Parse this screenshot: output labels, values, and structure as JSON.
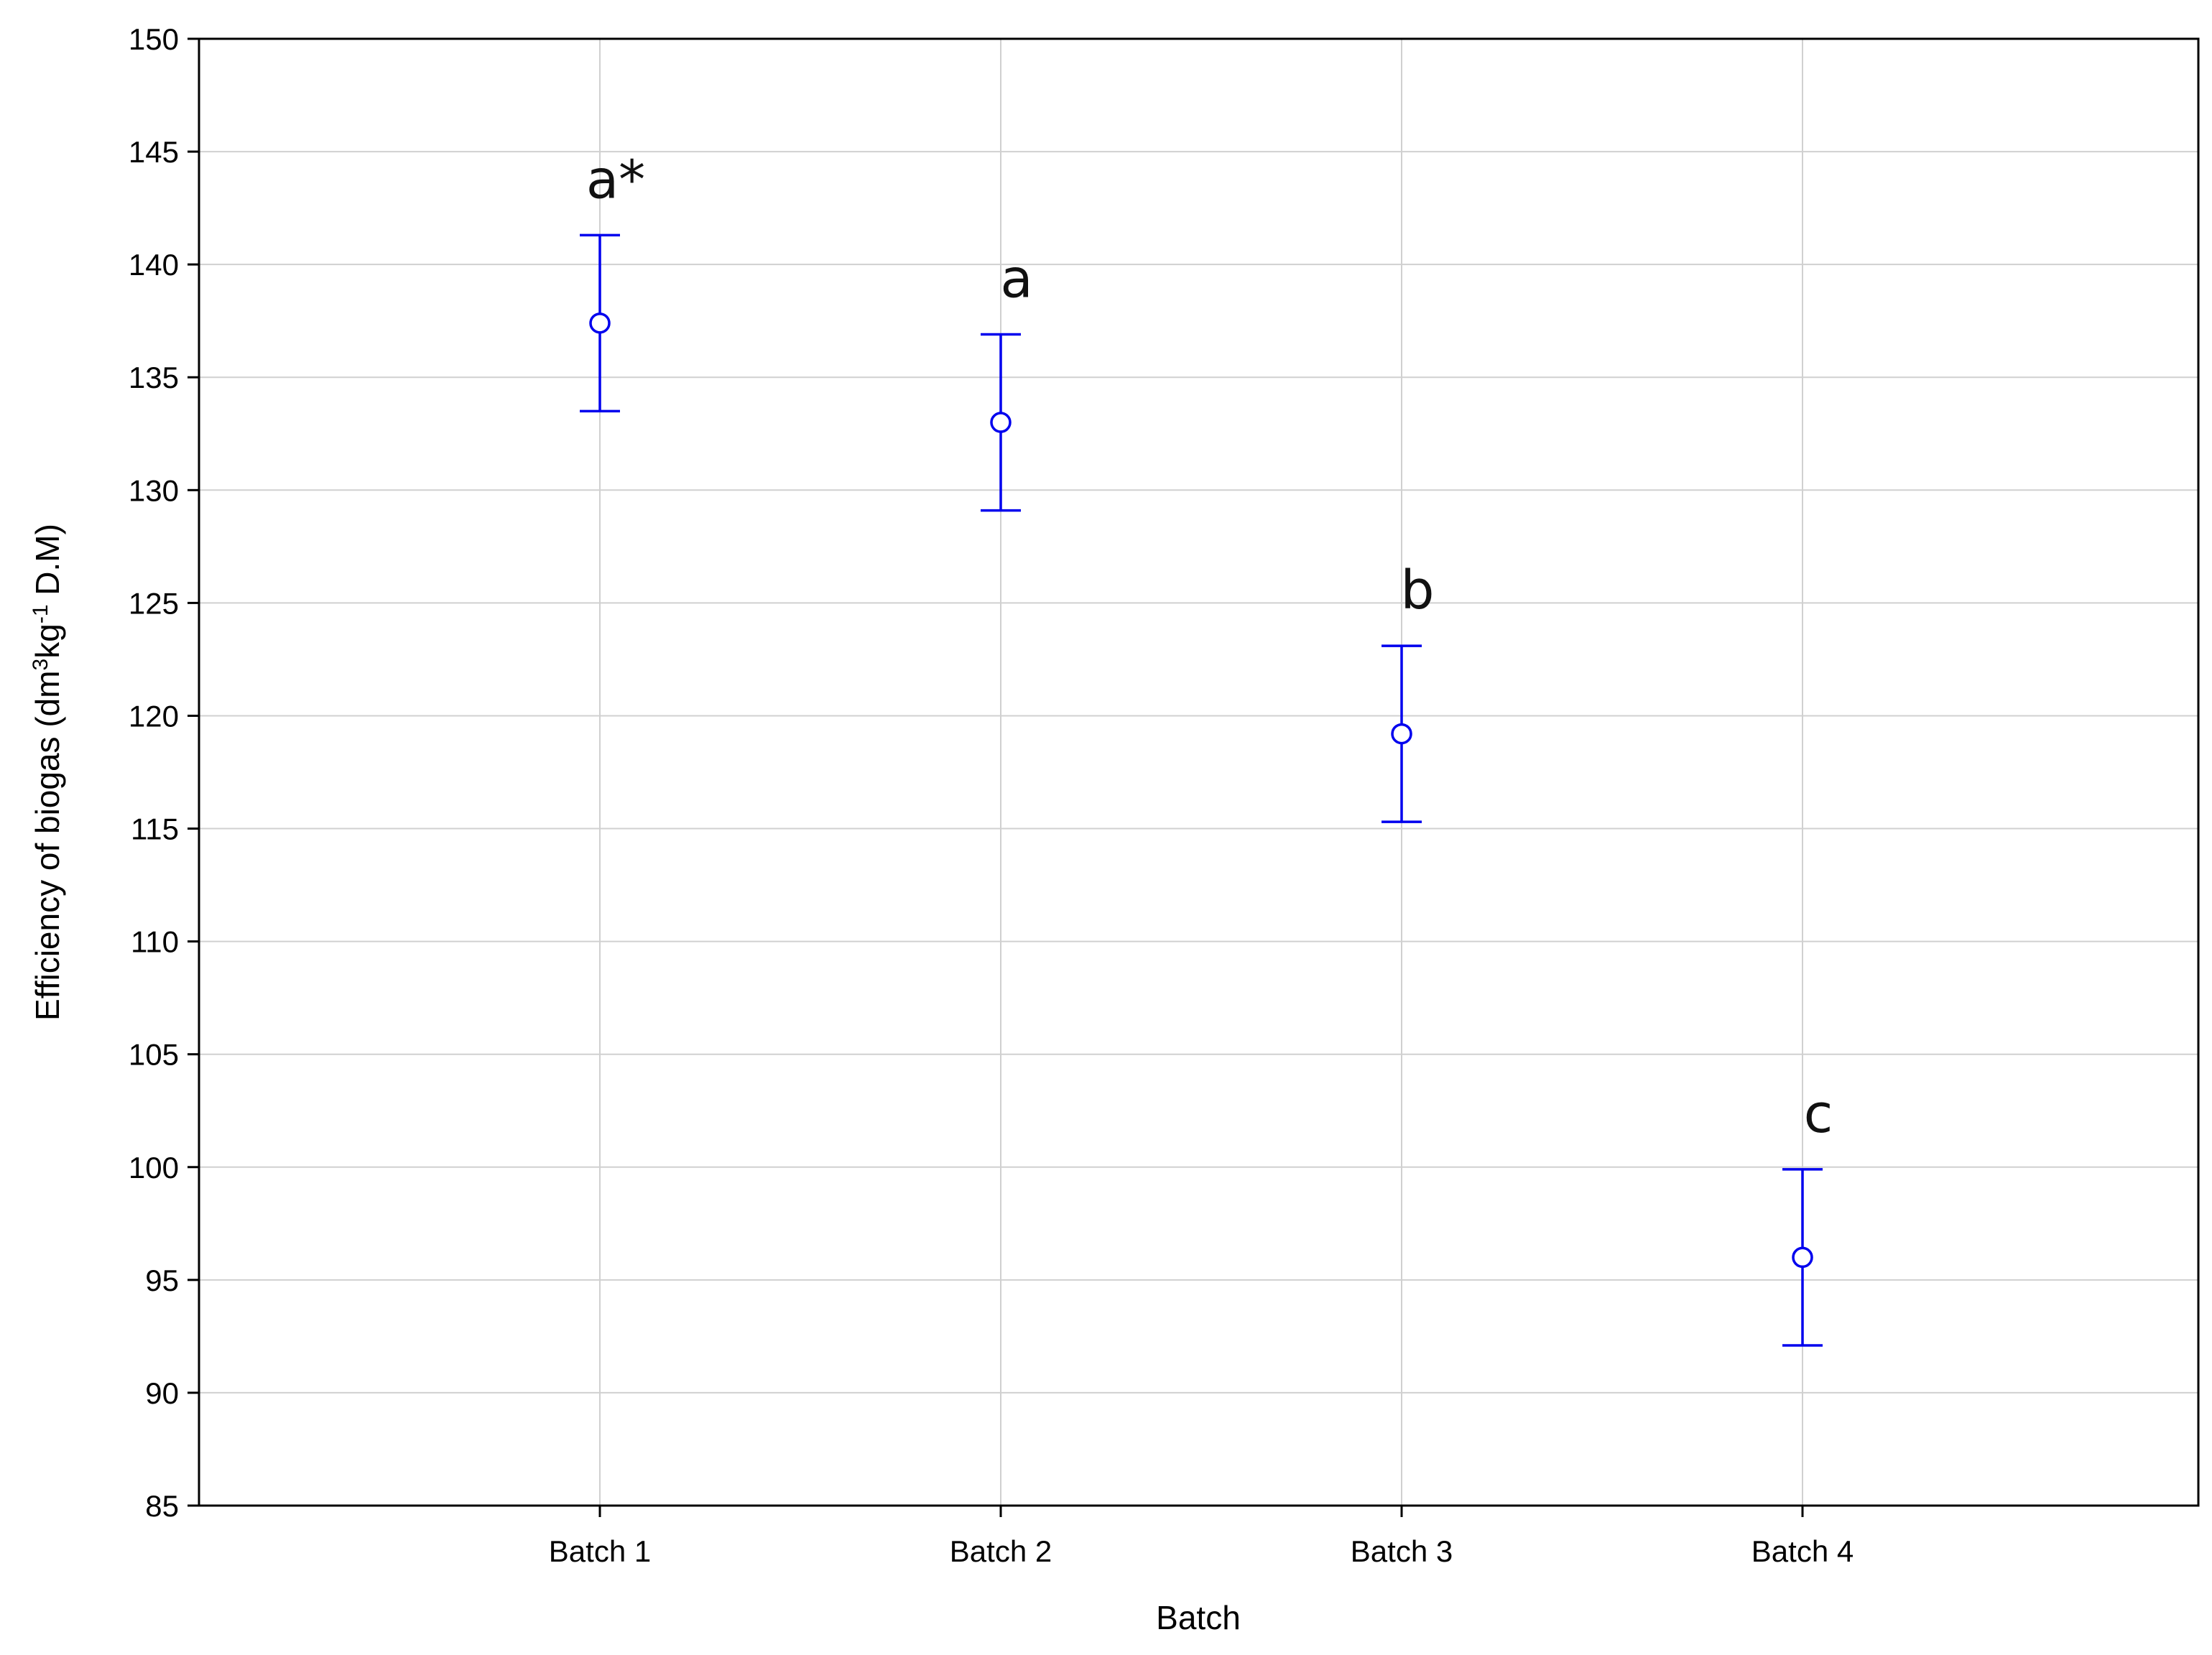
{
  "chart_data": {
    "type": "scatter",
    "chart_kind": "mean plot with error bars",
    "xlabel": "Batch",
    "ylabel_parts": {
      "pre": "Efficiency of biogas (dm",
      "sup1": "3",
      "mid": "kg",
      "sup2": "-1",
      "post": " D.M)"
    },
    "categories": [
      "Batch 1",
      "Batch 2",
      "Batch 3",
      "Batch 4"
    ],
    "means": [
      137.4,
      133.0,
      119.2,
      96.0
    ],
    "lower": [
      133.5,
      129.1,
      115.3,
      92.1
    ],
    "upper": [
      141.3,
      136.9,
      123.1,
      99.9
    ],
    "significance_labels": [
      "a*",
      "a",
      "b",
      "c"
    ],
    "ylim": [
      85,
      150
    ],
    "yticks": [
      85,
      90,
      95,
      100,
      105,
      110,
      115,
      120,
      125,
      130,
      135,
      140,
      145,
      150
    ],
    "grid": true,
    "colors": {
      "series": "#0000ee",
      "grid": "#d0d0d0",
      "frame": "#000000"
    }
  }
}
